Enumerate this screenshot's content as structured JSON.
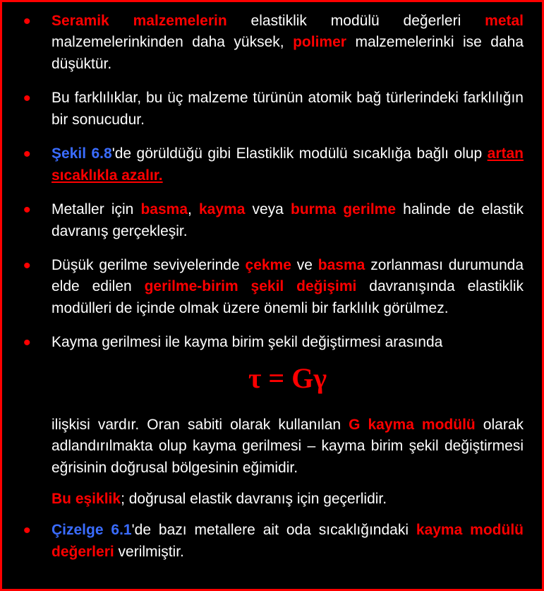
{
  "b1": {
    "t1": "Seramik malzemelerin",
    "t2": " elastiklik modülü değerleri ",
    "t3": "metal",
    "t4": " malzemelerinkinden daha yüksek, ",
    "t5": "polimer",
    "t6": " malzemelerinki ise daha düşüktür."
  },
  "b2": "Bu farklılıklar, bu üç malzeme türünün atomik bağ türlerindeki farklılığın bir sonucudur.",
  "b3": {
    "t1": "Şekil 6.8",
    "t2": "'de görüldüğü gibi Elastiklik modülü sıcaklığa bağlı olup ",
    "t3": "artan sıcaklıkla azalır."
  },
  "b4": {
    "t1": "Metaller için ",
    "t2": "basma",
    "t3": ", ",
    "t4": "kayma",
    "t5": " veya ",
    "t6": "burma gerilme",
    "t7": " halinde de elastik davranış gerçekleşir."
  },
  "b5": {
    "t1": "Düşük gerilme seviyelerinde ",
    "t2": "çekme",
    "t3": " ve ",
    "t4": "basma",
    "t5": " zorlanması durumunda elde edilen ",
    "t6": "gerilme-birim şekil değişimi",
    "t7": " davranışında elastiklik modülleri de içinde olmak üzere önemli bir farklılık görülmez."
  },
  "b6": "Kayma gerilmesi ile kayma birim şekil değiştirmesi arasında",
  "formula": "τ = Gγ",
  "sub1a": "ilişkisi vardır. Oran sabiti olarak kullanılan ",
  "sub1b": "G kayma modülü",
  "sub1c": " olarak adlandırılmakta olup kayma gerilmesi – kayma birim şekil değiştirmesi eğrisinin doğrusal bölgesinin eğimidir.",
  "sub2a": "Bu eşiklik",
  "sub2b": "; doğrusal elastik davranış için geçerlidir.",
  "b7": {
    "t1": "Çizelge 6.1",
    "t2": "'de bazı metallere ait oda sıcaklığındaki ",
    "t3": "kayma modülü değerleri",
    "t4": " verilmiştir."
  }
}
